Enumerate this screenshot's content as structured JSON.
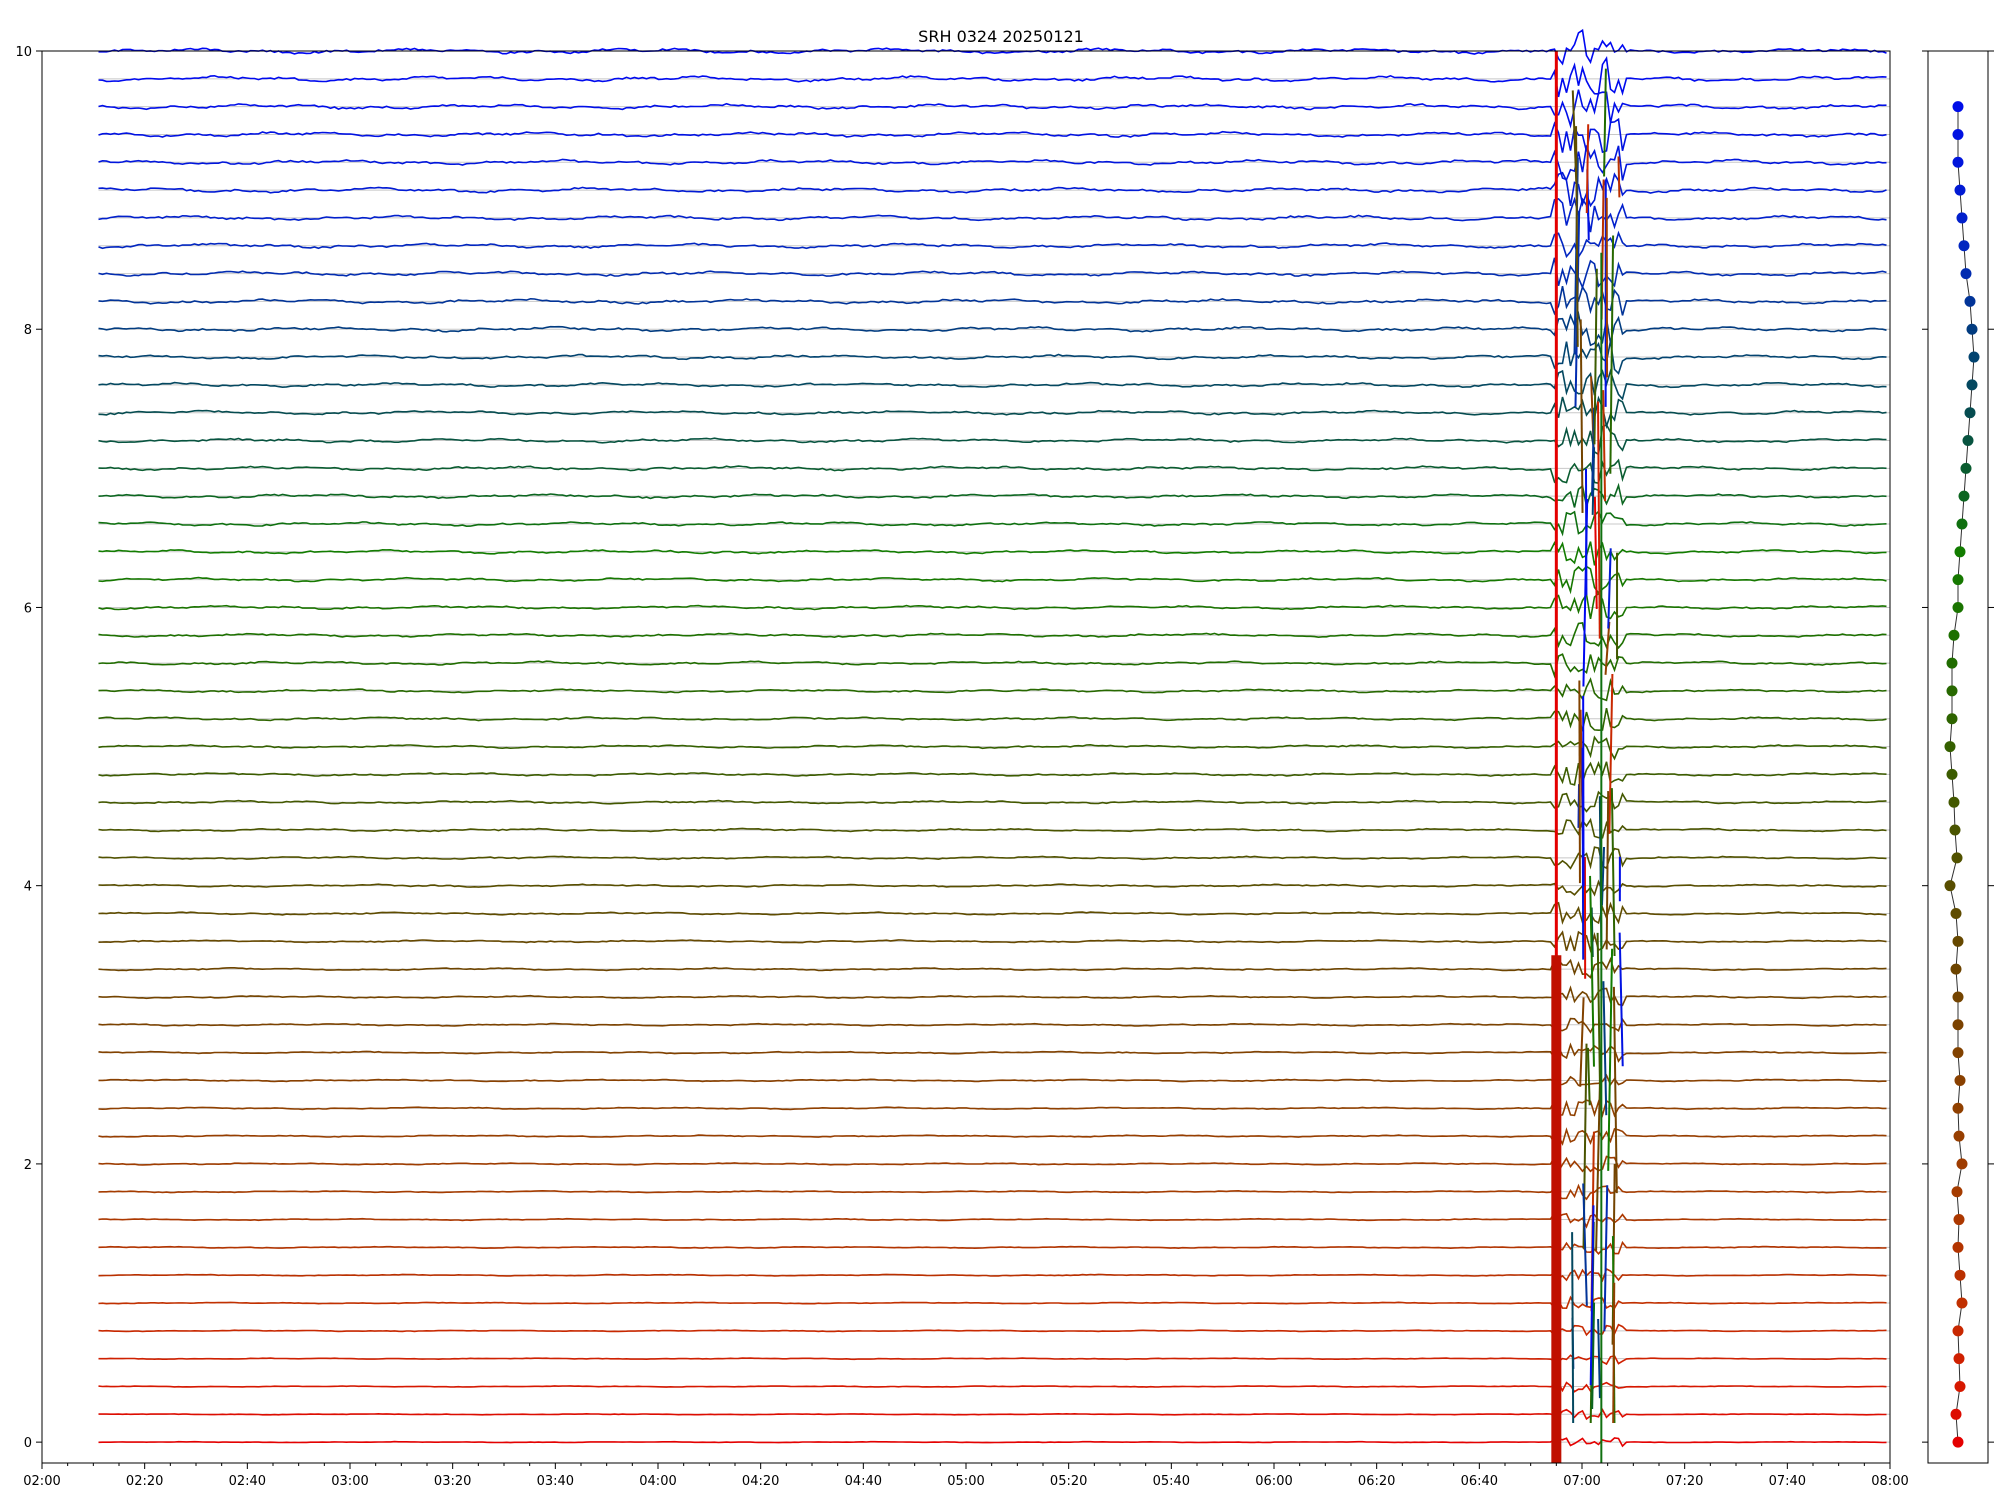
{
  "chart_data": {
    "type": "line",
    "title": "SRH 0324 20250121",
    "xlabel": "",
    "ylabel": "",
    "xlim": [
      "02:00",
      "08:00"
    ],
    "ylim": [
      -0.15,
      10
    ],
    "grid": true,
    "legend": "none",
    "x_ticks": [
      "02:00",
      "02:20",
      "02:40",
      "03:00",
      "03:20",
      "03:40",
      "04:00",
      "04:20",
      "04:40",
      "05:00",
      "05:20",
      "05:40",
      "06:00",
      "06:20",
      "06:40",
      "07:00",
      "07:20",
      "07:40",
      "08:00"
    ],
    "y_ticks": [
      "0",
      "2",
      "4",
      "6",
      "8",
      "10"
    ],
    "data_start": "02:11",
    "data_end": "08:00",
    "event_marker_time": "06:55",
    "channel_count": 51,
    "channel_baselines": [
      0.0,
      0.2,
      0.4,
      0.6,
      0.8,
      1.0,
      1.2,
      1.4,
      1.6,
      1.8,
      2.0,
      2.2,
      2.4,
      2.6,
      2.8,
      3.0,
      3.2,
      3.4,
      3.6,
      3.8,
      4.0,
      4.2,
      4.4,
      4.6,
      4.8,
      5.0,
      5.2,
      5.4,
      5.6,
      5.8,
      6.0,
      6.2,
      6.4,
      6.6,
      6.8,
      7.0,
      7.2,
      7.4,
      7.6,
      7.8,
      8.0,
      8.2,
      8.4,
      8.6,
      8.8,
      9.0,
      9.2,
      9.4,
      9.6,
      9.8,
      10.0
    ],
    "channel_colors": [
      "#e40000",
      "#dd0c00",
      "#d61800",
      "#cf2000",
      "#c82800",
      "#c13000",
      "#ba3000",
      "#b33400",
      "#ac3800",
      "#a53c00",
      "#9e3c00",
      "#973e00",
      "#904000",
      "#894000",
      "#824200",
      "#7b4200",
      "#744400",
      "#6d4400",
      "#664800",
      "#5f4c00",
      "#584e00",
      "#515200",
      "#4a5400",
      "#435800",
      "#3c5c00",
      "#356000",
      "#2e6400",
      "#276800",
      "#206c00",
      "#1d7000",
      "#1a7400",
      "#167800",
      "#127c00",
      "#0f7010",
      "#0c6620",
      "#0a5c30",
      "#085440",
      "#064c50",
      "#044860",
      "#034470",
      "#023c80",
      "#023498",
      "#022cb0",
      "#0226c0",
      "#0220cc",
      "#011ad4",
      "#0116dc",
      "#0112e2",
      "#000ee8",
      "#000aee",
      "#0008f2"
    ],
    "side_panel_points": [
      0.0,
      -0.2,
      0.2,
      0.1,
      0.0,
      0.4,
      0.2,
      0.0,
      0.1,
      -0.1,
      0.4,
      0.1,
      0.0,
      0.2,
      0.0,
      0.0,
      0.0,
      -0.2,
      0.0,
      -0.2,
      -0.8,
      -0.1,
      -0.3,
      -0.4,
      -0.6,
      -0.8,
      -0.6,
      -0.6,
      -0.6,
      -0.4,
      0.0,
      0.0,
      0.2,
      0.4,
      0.6,
      0.8,
      1.0,
      1.2,
      1.4,
      1.6,
      1.4,
      1.2,
      0.8,
      0.6,
      0.4,
      0.2,
      0.0,
      0.0,
      0.0
    ]
  }
}
